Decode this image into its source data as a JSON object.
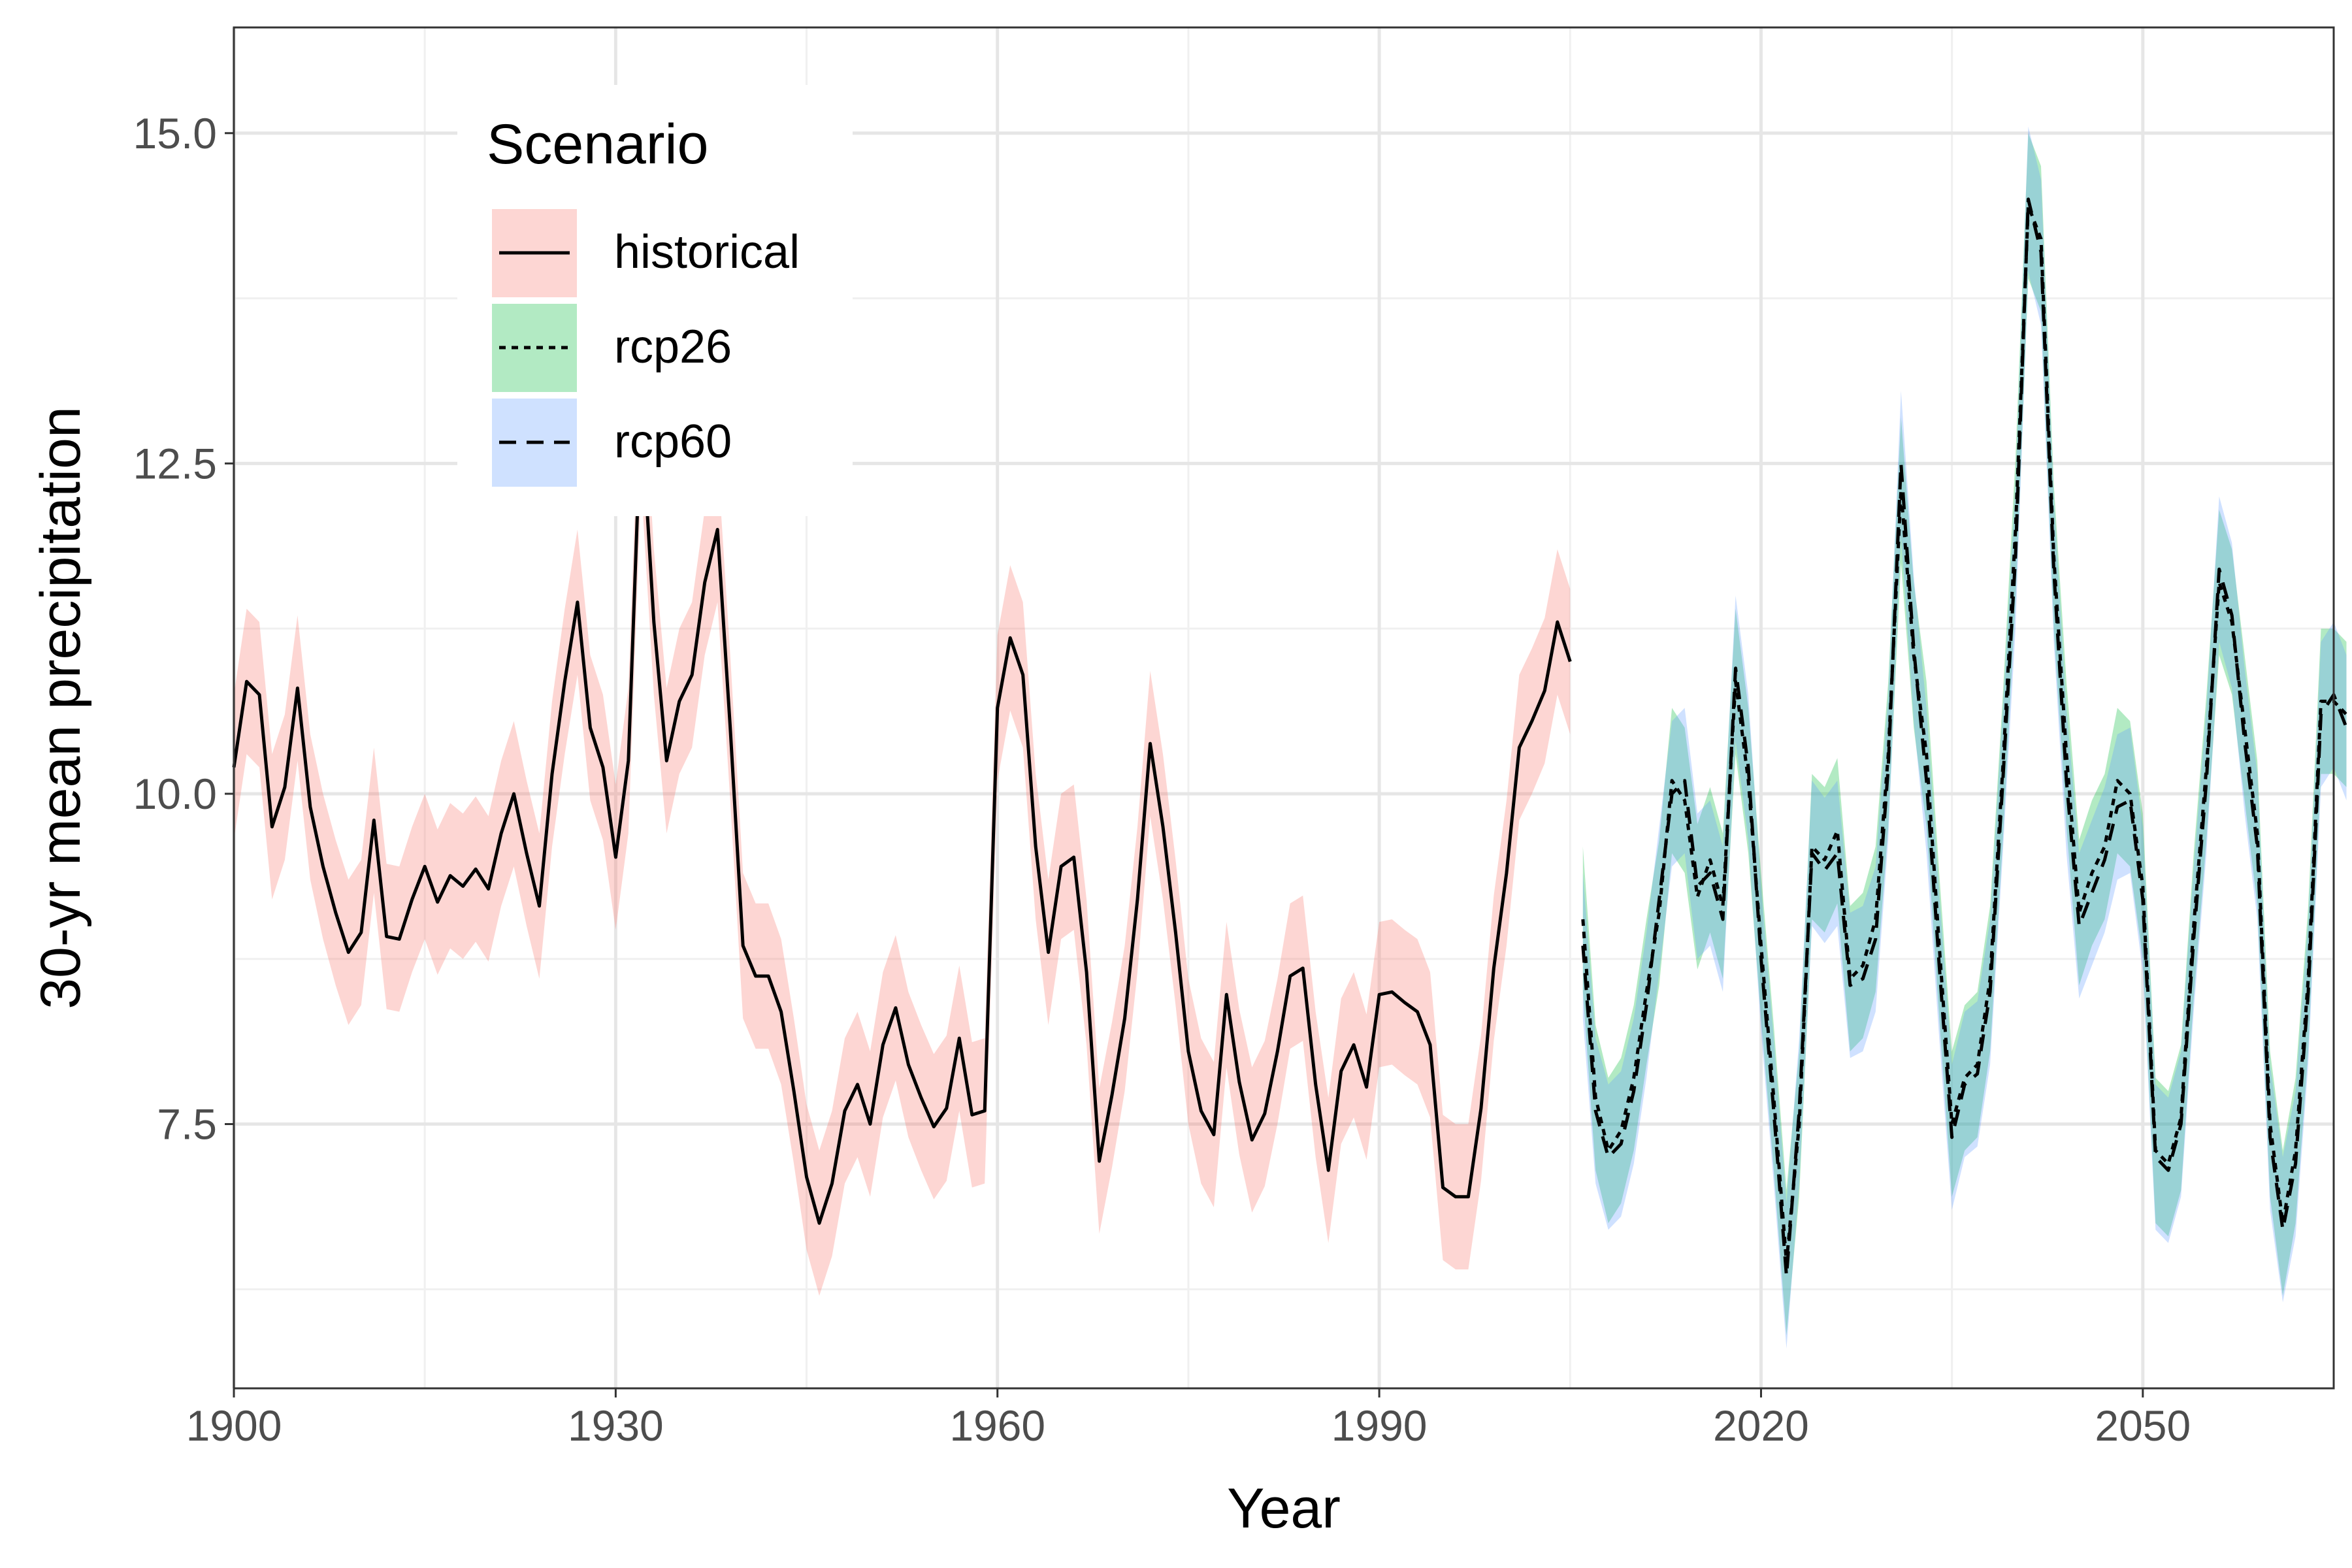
{
  "chart_data": {
    "type": "line",
    "xlabel": "Year",
    "ylabel": "30-yr mean precipitation",
    "xlim": [
      1900,
      2065
    ],
    "ylim": [
      5.5,
      15.8
    ],
    "x_ticks": [
      1900,
      1930,
      1960,
      1990,
      2020,
      2050
    ],
    "x_tick_labels": [
      "1900",
      "1930",
      "1960",
      "1990",
      "2020",
      "2050"
    ],
    "y_ticks": [
      7.5,
      10.0,
      12.5,
      15.0
    ],
    "y_tick_labels": [
      "7.5",
      "10.0",
      "12.5",
      "15.0"
    ],
    "grid": true,
    "legend": {
      "title": "Scenario",
      "position": "top-left inside",
      "items": [
        {
          "label": "historical",
          "linetype": "solid",
          "fill": "#F8766D"
        },
        {
          "label": "rcp26",
          "linetype": "dotted",
          "fill": "#00BA38"
        },
        {
          "label": "rcp60",
          "linetype": "dashed",
          "fill": "#619CFF"
        }
      ]
    },
    "ribbon_halfwidth": 0.55,
    "series": [
      {
        "name": "historical",
        "linetype": "solid",
        "fill": "#F8766D",
        "x_start": 1900,
        "values": [
          10.2,
          10.85,
          10.75,
          9.75,
          10.05,
          10.8,
          9.9,
          9.45,
          9.1,
          8.8,
          8.95,
          9.8,
          8.92,
          8.9,
          9.2,
          9.45,
          9.18,
          9.38,
          9.3,
          9.43,
          9.28,
          9.7,
          10.0,
          9.55,
          9.15,
          10.15,
          10.85,
          11.45,
          10.5,
          10.2,
          9.52,
          10.25,
          12.9,
          11.3,
          10.25,
          10.7,
          10.9,
          11.6,
          12.0,
          10.5,
          8.85,
          8.62,
          8.62,
          8.35,
          7.75,
          7.1,
          6.75,
          7.05,
          7.6,
          7.8,
          7.5,
          8.1,
          8.38,
          7.95,
          7.7,
          7.48,
          7.62,
          8.15,
          7.57,
          7.6,
          10.65,
          11.18,
          10.9,
          9.6,
          8.8,
          9.45,
          9.52,
          8.65,
          7.22,
          7.72,
          8.3,
          9.2,
          10.38,
          9.75,
          8.95,
          8.05,
          7.6,
          7.42,
          8.48,
          7.82,
          7.38,
          7.58,
          8.05,
          8.62,
          8.68,
          7.8,
          7.15,
          7.9,
          8.1,
          7.78,
          8.48,
          8.5,
          8.42,
          8.35,
          8.1,
          7.02,
          6.95,
          6.95,
          7.62,
          8.68,
          9.4,
          10.35,
          10.55,
          10.78,
          11.3,
          11.0
        ]
      },
      {
        "name": "rcp26",
        "linetype": "dotted",
        "fill": "#00BA38",
        "x_start": 2006,
        "values": [
          9.05,
          7.7,
          7.3,
          7.45,
          7.85,
          8.5,
          9.1,
          10.1,
          9.95,
          9.22,
          9.5,
          9.15,
          10.85,
          10.1,
          8.85,
          7.7,
          6.45,
          7.5,
          9.6,
          9.5,
          9.72,
          8.6,
          8.7,
          9.05,
          10.3,
          12.3,
          11.05,
          10.3,
          8.85,
          7.5,
          7.85,
          7.95,
          8.6,
          10.2,
          12.0,
          14.45,
          14.2,
          11.8,
          10.3,
          9.1,
          9.4,
          9.6,
          10.1,
          10.0,
          9.3,
          7.3,
          7.2,
          7.55,
          9.0,
          10.2,
          11.6,
          11.3,
          10.5,
          9.7,
          7.5,
          6.75,
          7.3,
          8.6,
          10.7,
          10.7,
          10.6
        ]
      },
      {
        "name": "rcp60",
        "linetype": "dashed",
        "fill": "#619CFF",
        "x_start": 2006,
        "values": [
          8.85,
          7.6,
          7.25,
          7.35,
          7.75,
          8.4,
          9.2,
          10.0,
          10.1,
          9.3,
          9.4,
          9.05,
          10.95,
          10.2,
          8.75,
          7.6,
          6.35,
          7.6,
          9.55,
          9.42,
          9.55,
          8.55,
          8.6,
          8.9,
          10.2,
          12.5,
          11.1,
          10.1,
          8.7,
          7.4,
          7.8,
          7.88,
          8.5,
          10.1,
          11.8,
          14.5,
          14.1,
          11.7,
          10.1,
          9.0,
          9.25,
          9.5,
          9.9,
          9.95,
          9.2,
          7.25,
          7.15,
          7.5,
          8.9,
          10.1,
          11.7,
          11.35,
          10.4,
          9.6,
          7.4,
          6.7,
          7.2,
          8.5,
          10.6,
          10.75,
          10.5
        ]
      }
    ]
  }
}
